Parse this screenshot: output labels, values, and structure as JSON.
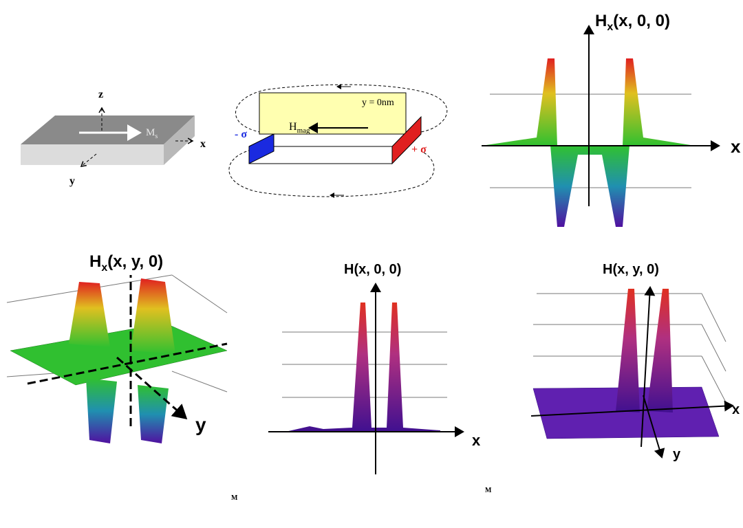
{
  "panels": [
    {
      "axis_z": "z",
      "axis_x": "x",
      "axis_y": "y",
      "magnetization": {
        "main": "M",
        "sub": "s"
      }
    },
    {
      "plane_label": "y = 0nm",
      "field": {
        "main": "H",
        "sub": "mag"
      },
      "charge_minus": "- σ",
      "charge_plus": "+ σ"
    },
    {
      "title": {
        "main": "H",
        "sub": "x",
        "rest": "(x, 0, 0)"
      },
      "axis_x": "x"
    },
    {
      "title": {
        "main": "H",
        "sub": "x",
        "rest": "(x, y, 0)"
      },
      "axis_y": "y",
      "footnote": "M"
    },
    {
      "title": "H(x, 0, 0)",
      "axis_x": "x",
      "footnote": "M"
    },
    {
      "title": "H(x, y, 0)",
      "axis_x": "x",
      "axis_y": "y"
    }
  ]
}
